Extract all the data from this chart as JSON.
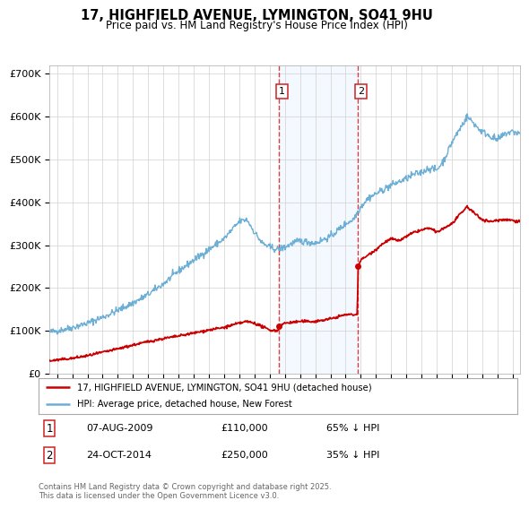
{
  "title": "17, HIGHFIELD AVENUE, LYMINGTON, SO41 9HU",
  "subtitle": "Price paid vs. HM Land Registry's House Price Index (HPI)",
  "ylim": [
    0,
    720000
  ],
  "yticks": [
    0,
    100000,
    200000,
    300000,
    400000,
    500000,
    600000,
    700000
  ],
  "xlim_start": 1994.5,
  "xlim_end": 2025.5,
  "transaction1": {
    "date_num": 2009.59,
    "price": 110000,
    "label": "1",
    "date_str": "07-AUG-2009",
    "pct": "65% ↓ HPI"
  },
  "transaction2": {
    "date_num": 2014.81,
    "price": 250000,
    "label": "2",
    "date_str": "24-OCT-2014",
    "pct": "35% ↓ HPI"
  },
  "hpi_color": "#6baed6",
  "property_color": "#cc0000",
  "vline_color": "#cc2222",
  "shade_color": "#ddeeff",
  "legend1": "17, HIGHFIELD AVENUE, LYMINGTON, SO41 9HU (detached house)",
  "legend2": "HPI: Average price, detached house, New Forest",
  "footnote": "Contains HM Land Registry data © Crown copyright and database right 2025.\nThis data is licensed under the Open Government Licence v3.0.",
  "hpi_anchors_x": [
    1994.5,
    1995,
    1996,
    1997,
    1998,
    1999,
    2000,
    2001,
    2002,
    2003,
    2004,
    2005,
    2006,
    2007,
    2007.5,
    2008,
    2008.5,
    2009,
    2009.5,
    2010,
    2010.5,
    2011,
    2012,
    2013,
    2013.5,
    2014,
    2014.5,
    2015,
    2015.5,
    2016,
    2017,
    2018,
    2018.5,
    2019,
    2019.5,
    2020,
    2020.5,
    2021,
    2021.5,
    2022,
    2022.3,
    2022.8,
    2023,
    2023.5,
    2024,
    2024.5,
    2025,
    2025.5
  ],
  "hpi_anchors_y": [
    97000,
    100000,
    108000,
    118000,
    132000,
    148000,
    165000,
    185000,
    210000,
    240000,
    265000,
    290000,
    315000,
    355000,
    360000,
    330000,
    305000,
    295000,
    290000,
    295000,
    305000,
    310000,
    305000,
    320000,
    335000,
    350000,
    360000,
    390000,
    410000,
    420000,
    440000,
    455000,
    465000,
    470000,
    480000,
    475000,
    500000,
    540000,
    570000,
    600000,
    590000,
    570000,
    565000,
    555000,
    545000,
    560000,
    565000,
    560000
  ],
  "prop_anchors_x": [
    1994.5,
    1995,
    1996,
    1997,
    1998,
    1999,
    2000,
    2001,
    2002,
    2003,
    2004,
    2005,
    2006,
    2007,
    2007.5,
    2008,
    2008.5,
    2009.0,
    2009.55,
    2009.59,
    2009.65,
    2010,
    2011,
    2012,
    2013,
    2014.0,
    2014.78,
    2014.81,
    2014.85,
    2015,
    2016,
    2016.5,
    2017,
    2017.5,
    2018,
    2018.5,
    2019,
    2019.5,
    2020,
    2020.5,
    2021,
    2021.5,
    2022,
    2022.3,
    2022.8,
    2023,
    2023.5,
    2024,
    2024.5,
    2025,
    2025.5
  ],
  "prop_anchors_y": [
    30000,
    32000,
    36000,
    42000,
    50000,
    58000,
    67000,
    75000,
    82000,
    88000,
    95000,
    102000,
    108000,
    118000,
    122000,
    118000,
    110000,
    102000,
    100000,
    110000,
    112000,
    118000,
    122000,
    122000,
    128000,
    138000,
    138000,
    250000,
    255000,
    265000,
    290000,
    305000,
    315000,
    310000,
    320000,
    330000,
    335000,
    340000,
    330000,
    340000,
    350000,
    370000,
    390000,
    380000,
    365000,
    360000,
    355000,
    358000,
    360000,
    358000,
    355000
  ]
}
